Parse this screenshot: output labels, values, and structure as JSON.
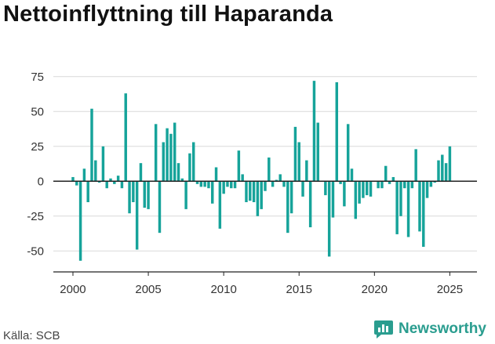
{
  "header": {
    "title": "Nettoinflyttning till Haparanda"
  },
  "footer": {
    "source": "Källa: SCB",
    "brand": "Newsworthy"
  },
  "colors": {
    "bar": "#16a39a",
    "brand": "#2a9d8f",
    "grid": "#d9d9d9",
    "axis": "#222222"
  },
  "chart_data": {
    "type": "bar",
    "title": "Nettoinflyttning till Haparanda",
    "xlabel": "",
    "ylabel": "",
    "xlim": [
      1998.7,
      2026.8
    ],
    "ylim": [
      -65,
      85
    ],
    "yticks": [
      -50,
      -25,
      0,
      25,
      50,
      75
    ],
    "xticks": [
      2000,
      2005,
      2010,
      2015,
      2020,
      2025
    ],
    "grid": true,
    "x_start": 2000.0,
    "x_step": 0.25,
    "values": [
      3,
      -3,
      -57,
      9,
      -15,
      52,
      15,
      -1,
      25,
      -5,
      2,
      -2,
      4,
      -5,
      63,
      -23,
      -15,
      -49,
      13,
      -19,
      -20,
      0,
      41,
      -37,
      28,
      38,
      34,
      42,
      13,
      2,
      -20,
      20,
      28,
      -2,
      -4,
      -4,
      -5,
      -16,
      10,
      -34,
      -9,
      -4,
      -5,
      -5,
      22,
      5,
      -15,
      -14,
      -15,
      -25,
      -20,
      -7,
      17,
      -4,
      1,
      5,
      -4,
      -37,
      -23,
      39,
      28,
      -11,
      15,
      -33,
      72,
      42,
      0,
      -10,
      -54,
      -26,
      71,
      -2,
      -18,
      41,
      9,
      -27,
      -16,
      -12,
      -10,
      -11,
      0,
      -5,
      -5,
      11,
      -2,
      3,
      -38,
      -25,
      -5,
      -40,
      -5,
      23,
      -36,
      -47,
      -12,
      -4,
      -1,
      15,
      19,
      13,
      25
    ]
  }
}
